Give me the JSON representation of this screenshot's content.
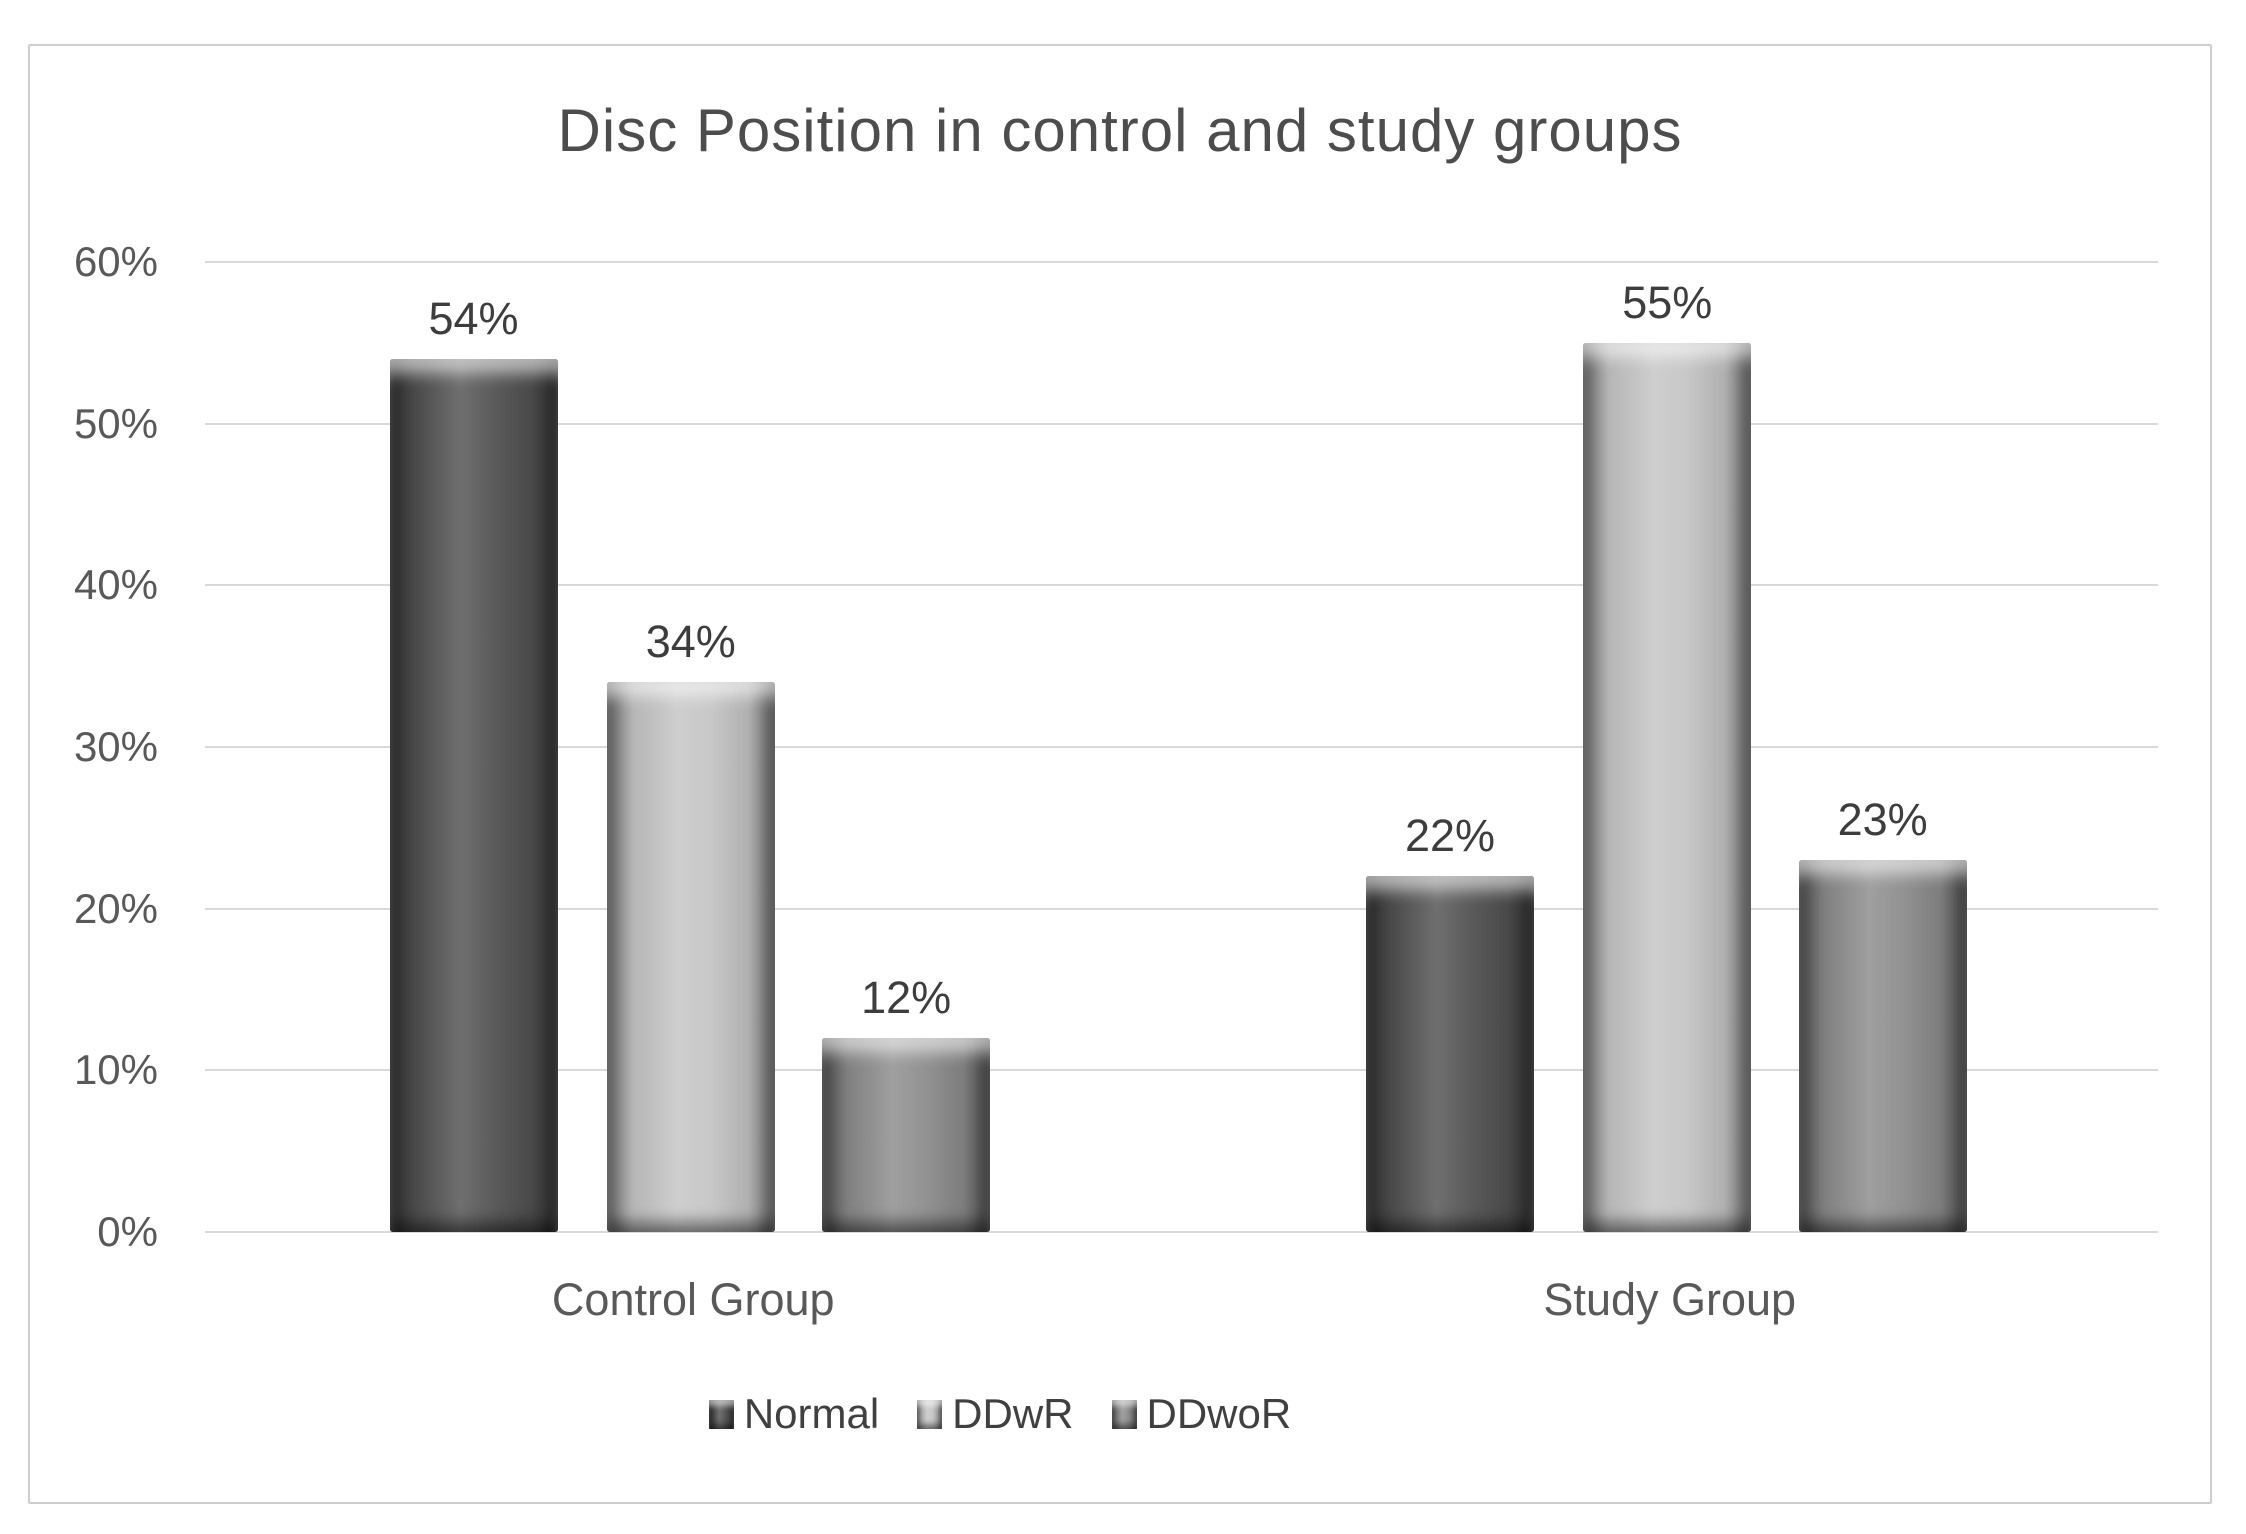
{
  "chart_data": {
    "type": "bar",
    "title": "Disc Position in control and study groups",
    "categories": [
      "Control Group",
      "Study Group"
    ],
    "series": [
      {
        "name": "Normal",
        "color": "#515151",
        "values": [
          54,
          22
        ],
        "labels": [
          "54%",
          "22%"
        ]
      },
      {
        "name": "DDwR",
        "color": "#c4c4c4",
        "values": [
          34,
          55
        ],
        "labels": [
          "34%",
          "55%"
        ]
      },
      {
        "name": "DDwoR",
        "color": "#8b8b8b",
        "values": [
          12,
          23
        ],
        "labels": [
          "12%",
          "23%"
        ]
      }
    ],
    "xlabel": "",
    "ylabel": "",
    "ylim": [
      0,
      60
    ],
    "y_ticks": [
      {
        "value": 60,
        "label": "60%"
      },
      {
        "value": 50,
        "label": "50%"
      },
      {
        "value": 40,
        "label": "40%"
      },
      {
        "value": 30,
        "label": "30%"
      },
      {
        "value": 20,
        "label": "20%"
      },
      {
        "value": 10,
        "label": "10%"
      },
      {
        "value": 0,
        "label": "0%"
      }
    ],
    "grid": true,
    "legend_position": "bottom"
  },
  "colors": {
    "gridline": "#d9d9d9",
    "frame_border": "#cdcdcd",
    "tick_text": "#595959",
    "title_text": "#4d4d4d",
    "data_label_text": "#3d3d3d",
    "background": "#ffffff"
  }
}
